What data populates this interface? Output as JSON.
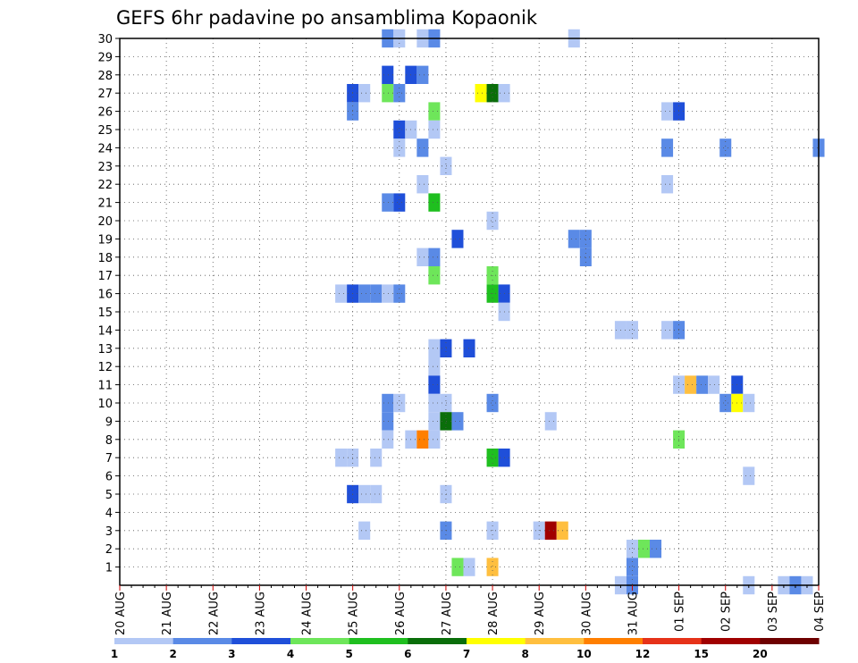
{
  "chart_data": {
    "type": "heatmap",
    "title": "GEFS 6hr padavine po ansamblima Kopaonik",
    "x_tick_labels": [
      "20 AUG",
      "21 AUG",
      "22 AUG",
      "23 AUG",
      "24 AUG",
      "25 AUG",
      "26 AUG",
      "27 AUG",
      "28 AUG",
      "29 AUG",
      "30 AUG",
      "31 AUG",
      "01 SEP",
      "02 SEP",
      "03 SEP",
      "04 SEP"
    ],
    "y_tick_labels": [
      "1",
      "2",
      "3",
      "4",
      "5",
      "6",
      "7",
      "8",
      "9",
      "10",
      "11",
      "12",
      "13",
      "14",
      "15",
      "16",
      "17",
      "18",
      "19",
      "20",
      "21",
      "22",
      "23",
      "24",
      "25",
      "26",
      "27",
      "28",
      "29",
      "30"
    ],
    "y_range": [
      0,
      30
    ],
    "x_step_hours": 6,
    "grid": true,
    "colorbar": {
      "levels": [
        "1",
        "2",
        "3",
        "4",
        "5",
        "6",
        "7",
        "8",
        "10",
        "12",
        "15",
        "20"
      ],
      "colors": [
        "#b3c8f5",
        "#5a8ae6",
        "#1f4fd9",
        "#6ee65a",
        "#1fbf1f",
        "#0a6e0a",
        "#ffff00",
        "#ffbf3f",
        "#ff7f00",
        "#e63219",
        "#a00000",
        "#6e0000"
      ]
    },
    "cells": [
      {
        "m": 30,
        "s": [
          [
            23,
            1
          ],
          [
            24,
            0
          ],
          [
            26,
            0
          ],
          [
            27,
            1
          ],
          [
            39,
            0
          ]
        ]
      },
      {
        "m": 28,
        "s": [
          [
            23,
            2
          ],
          [
            25,
            2
          ],
          [
            26,
            1
          ]
        ]
      },
      {
        "m": 27,
        "s": [
          [
            20,
            2
          ],
          [
            21,
            0
          ],
          [
            23,
            3
          ],
          [
            24,
            1
          ],
          [
            31,
            6
          ],
          [
            32,
            5
          ],
          [
            33,
            0
          ]
        ]
      },
      {
        "m": 26,
        "s": [
          [
            20,
            1
          ],
          [
            27,
            3
          ],
          [
            47,
            0
          ],
          [
            48,
            2
          ]
        ]
      },
      {
        "m": 25,
        "s": [
          [
            24,
            2
          ],
          [
            25,
            0
          ],
          [
            27,
            0
          ]
        ]
      },
      {
        "m": 24,
        "s": [
          [
            24,
            0
          ],
          [
            26,
            1
          ],
          [
            47,
            1
          ],
          [
            52,
            1
          ],
          [
            60,
            1
          ]
        ]
      },
      {
        "m": 23,
        "s": [
          [
            28,
            0
          ]
        ]
      },
      {
        "m": 22,
        "s": [
          [
            26,
            0
          ],
          [
            47,
            0
          ]
        ]
      },
      {
        "m": 21,
        "s": [
          [
            23,
            1
          ],
          [
            24,
            2
          ],
          [
            27,
            4
          ]
        ]
      },
      {
        "m": 20,
        "s": [
          [
            32,
            0
          ]
        ]
      },
      {
        "m": 19,
        "s": [
          [
            29,
            2
          ],
          [
            39,
            1
          ],
          [
            40,
            1
          ]
        ]
      },
      {
        "m": 18,
        "s": [
          [
            26,
            0
          ],
          [
            27,
            1
          ],
          [
            40,
            1
          ]
        ]
      },
      {
        "m": 17,
        "s": [
          [
            27,
            3
          ],
          [
            32,
            3
          ]
        ]
      },
      {
        "m": 16,
        "s": [
          [
            19,
            0
          ],
          [
            20,
            2
          ],
          [
            21,
            1
          ],
          [
            22,
            1
          ],
          [
            23,
            0
          ],
          [
            24,
            1
          ],
          [
            32,
            4
          ],
          [
            33,
            2
          ]
        ]
      },
      {
        "m": 15,
        "s": [
          [
            33,
            0
          ]
        ]
      },
      {
        "m": 14,
        "s": [
          [
            43,
            0
          ],
          [
            44,
            0
          ],
          [
            47,
            0
          ],
          [
            48,
            1
          ]
        ]
      },
      {
        "m": 13,
        "s": [
          [
            27,
            0
          ],
          [
            28,
            2
          ],
          [
            30,
            2
          ]
        ]
      },
      {
        "m": 12,
        "s": [
          [
            27,
            0
          ]
        ]
      },
      {
        "m": 11,
        "s": [
          [
            27,
            2
          ],
          [
            48,
            0
          ],
          [
            49,
            7
          ],
          [
            50,
            1
          ],
          [
            51,
            0
          ],
          [
            53,
            2
          ]
        ]
      },
      {
        "m": 10,
        "s": [
          [
            23,
            1
          ],
          [
            24,
            0
          ],
          [
            27,
            0
          ],
          [
            28,
            0
          ],
          [
            32,
            1
          ],
          [
            52,
            1
          ],
          [
            53,
            6
          ],
          [
            54,
            0
          ]
        ]
      },
      {
        "m": 9,
        "s": [
          [
            23,
            1
          ],
          [
            27,
            0
          ],
          [
            28,
            5
          ],
          [
            29,
            1
          ],
          [
            37,
            0
          ]
        ]
      },
      {
        "m": 8,
        "s": [
          [
            23,
            0
          ],
          [
            25,
            0
          ],
          [
            26,
            8
          ],
          [
            27,
            0
          ],
          [
            48,
            3
          ]
        ]
      },
      {
        "m": 7,
        "s": [
          [
            19,
            0
          ],
          [
            20,
            0
          ],
          [
            22,
            0
          ],
          [
            32,
            4
          ],
          [
            33,
            2
          ]
        ]
      },
      {
        "m": 6,
        "s": [
          [
            54,
            0
          ]
        ]
      },
      {
        "m": 5,
        "s": [
          [
            20,
            2
          ],
          [
            21,
            0
          ],
          [
            22,
            0
          ],
          [
            28,
            0
          ]
        ]
      },
      {
        "m": 3,
        "s": [
          [
            21,
            0
          ],
          [
            28,
            1
          ],
          [
            32,
            0
          ],
          [
            36,
            0
          ],
          [
            37,
            10
          ],
          [
            38,
            7
          ]
        ]
      },
      {
        "m": 2,
        "s": [
          [
            44,
            0
          ],
          [
            45,
            3
          ],
          [
            46,
            1
          ]
        ]
      },
      {
        "m": 1,
        "s": [
          [
            29,
            3
          ],
          [
            30,
            0
          ],
          [
            32,
            7
          ],
          [
            44,
            1
          ]
        ]
      },
      {
        "m": 0,
        "s": [
          [
            43,
            0
          ],
          [
            44,
            1
          ],
          [
            54,
            0
          ],
          [
            57,
            0
          ],
          [
            58,
            1
          ],
          [
            59,
            0
          ]
        ]
      }
    ]
  }
}
